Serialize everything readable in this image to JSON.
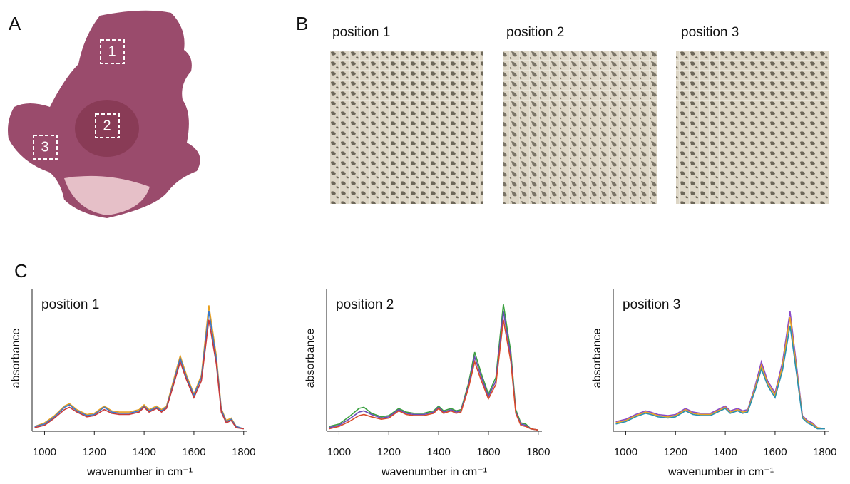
{
  "panel_a": {
    "label": "A",
    "regions": [
      "1",
      "2",
      "3"
    ]
  },
  "panel_b": {
    "label": "B",
    "images": [
      "position 1",
      "position 2",
      "position 3"
    ]
  },
  "panel_c": {
    "label": "C"
  },
  "chart_data": [
    {
      "type": "line",
      "title": "position 1",
      "x_label": "wavenumber  in cm⁻¹",
      "y_label": "absorbance",
      "x": [
        960,
        1000,
        1040,
        1080,
        1100,
        1130,
        1170,
        1200,
        1240,
        1270,
        1300,
        1340,
        1380,
        1400,
        1420,
        1450,
        1470,
        1490,
        1520,
        1545,
        1570,
        1600,
        1630,
        1660,
        1690,
        1710,
        1730,
        1750,
        1770,
        1800
      ],
      "xlim": [
        950,
        1815
      ],
      "xticks": [
        1000,
        1200,
        1400,
        1600,
        1800
      ],
      "ylim": [
        0,
        1.1
      ],
      "series": [
        {
          "color": "#e8a020",
          "values": [
            0.04,
            0.07,
            0.13,
            0.21,
            0.23,
            0.18,
            0.14,
            0.15,
            0.21,
            0.17,
            0.16,
            0.16,
            0.18,
            0.22,
            0.18,
            0.21,
            0.18,
            0.21,
            0.44,
            0.63,
            0.47,
            0.31,
            0.47,
            1.05,
            0.63,
            0.19,
            0.09,
            0.11,
            0.04,
            0.02
          ]
        },
        {
          "color": "#3a78c8",
          "values": [
            0.04,
            0.06,
            0.12,
            0.2,
            0.22,
            0.17,
            0.13,
            0.14,
            0.2,
            0.16,
            0.15,
            0.15,
            0.17,
            0.21,
            0.17,
            0.2,
            0.17,
            0.2,
            0.42,
            0.61,
            0.45,
            0.3,
            0.45,
            1.0,
            0.6,
            0.18,
            0.08,
            0.1,
            0.04,
            0.02
          ]
        },
        {
          "color": "#c83a3a",
          "values": [
            0.03,
            0.05,
            0.11,
            0.18,
            0.2,
            0.16,
            0.12,
            0.13,
            0.18,
            0.15,
            0.14,
            0.14,
            0.16,
            0.2,
            0.16,
            0.19,
            0.16,
            0.19,
            0.4,
            0.58,
            0.43,
            0.28,
            0.42,
            0.93,
            0.56,
            0.16,
            0.07,
            0.09,
            0.03,
            0.02
          ]
        }
      ]
    },
    {
      "type": "line",
      "title": "position 2",
      "x_label": "wavenumber  in cm⁻¹",
      "y_label": "absorbance",
      "x": [
        960,
        1000,
        1040,
        1080,
        1100,
        1130,
        1170,
        1200,
        1240,
        1270,
        1300,
        1340,
        1380,
        1400,
        1420,
        1450,
        1470,
        1490,
        1520,
        1545,
        1570,
        1600,
        1630,
        1660,
        1690,
        1710,
        1730,
        1750,
        1770,
        1800
      ],
      "xlim": [
        950,
        1815
      ],
      "xticks": [
        1000,
        1200,
        1400,
        1600,
        1800
      ],
      "ylim": [
        0,
        1.1
      ],
      "series": [
        {
          "color": "#3aa040",
          "values": [
            0.04,
            0.06,
            0.12,
            0.19,
            0.2,
            0.15,
            0.12,
            0.13,
            0.19,
            0.16,
            0.15,
            0.15,
            0.17,
            0.21,
            0.17,
            0.19,
            0.17,
            0.18,
            0.4,
            0.66,
            0.49,
            0.31,
            0.45,
            1.06,
            0.66,
            0.18,
            0.07,
            0.06,
            0.02,
            0.01
          ]
        },
        {
          "color": "#6a4ab8",
          "values": [
            0.03,
            0.05,
            0.1,
            0.16,
            0.17,
            0.14,
            0.11,
            0.12,
            0.18,
            0.15,
            0.14,
            0.14,
            0.16,
            0.2,
            0.16,
            0.18,
            0.16,
            0.17,
            0.38,
            0.62,
            0.46,
            0.29,
            0.42,
            1.0,
            0.62,
            0.16,
            0.06,
            0.05,
            0.02,
            0.01
          ]
        },
        {
          "color": "#d84a2a",
          "values": [
            0.02,
            0.04,
            0.08,
            0.13,
            0.14,
            0.12,
            0.1,
            0.11,
            0.17,
            0.14,
            0.13,
            0.13,
            0.15,
            0.19,
            0.15,
            0.17,
            0.15,
            0.16,
            0.36,
            0.58,
            0.43,
            0.27,
            0.39,
            0.93,
            0.58,
            0.15,
            0.05,
            0.04,
            0.02,
            0.01
          ]
        }
      ]
    },
    {
      "type": "line",
      "title": "position 3",
      "x_label": "wavenumber  in cm⁻¹",
      "y_label": "absorbance",
      "x": [
        960,
        1000,
        1040,
        1080,
        1100,
        1130,
        1170,
        1200,
        1240,
        1270,
        1300,
        1340,
        1380,
        1400,
        1420,
        1450,
        1470,
        1490,
        1520,
        1545,
        1570,
        1600,
        1630,
        1660,
        1690,
        1710,
        1730,
        1750,
        1770,
        1800
      ],
      "xlim": [
        950,
        1815
      ],
      "xticks": [
        1000,
        1200,
        1400,
        1600,
        1800
      ],
      "ylim": [
        0,
        1.1
      ],
      "series": [
        {
          "color": "#8a4ac8",
          "values": [
            0.08,
            0.1,
            0.14,
            0.17,
            0.16,
            0.14,
            0.13,
            0.14,
            0.19,
            0.16,
            0.15,
            0.15,
            0.19,
            0.21,
            0.17,
            0.19,
            0.17,
            0.18,
            0.38,
            0.58,
            0.42,
            0.32,
            0.58,
            1.0,
            0.48,
            0.13,
            0.09,
            0.07,
            0.03,
            0.02
          ]
        },
        {
          "color": "#e8a020",
          "values": [
            0.07,
            0.09,
            0.13,
            0.16,
            0.15,
            0.13,
            0.12,
            0.13,
            0.18,
            0.15,
            0.14,
            0.14,
            0.18,
            0.2,
            0.16,
            0.18,
            0.16,
            0.17,
            0.36,
            0.55,
            0.4,
            0.3,
            0.55,
            0.95,
            0.45,
            0.12,
            0.08,
            0.06,
            0.03,
            0.02
          ]
        },
        {
          "color": "#2a90b0",
          "values": [
            0.06,
            0.08,
            0.12,
            0.15,
            0.14,
            0.12,
            0.11,
            0.12,
            0.17,
            0.14,
            0.13,
            0.13,
            0.17,
            0.19,
            0.15,
            0.17,
            0.15,
            0.16,
            0.34,
            0.52,
            0.38,
            0.28,
            0.51,
            0.88,
            0.42,
            0.11,
            0.07,
            0.05,
            0.02,
            0.02
          ]
        }
      ]
    }
  ]
}
